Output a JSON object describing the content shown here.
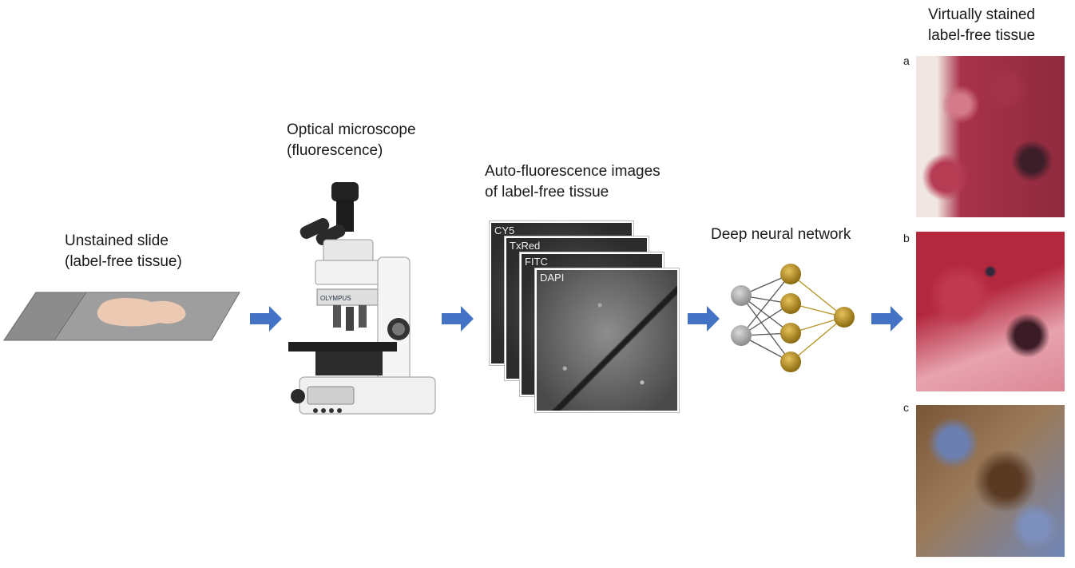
{
  "labels": {
    "unstained_line1": "Unstained slide",
    "unstained_line2": "(label-free tissue)",
    "microscope_line1": "Optical microscope",
    "microscope_line2": "(fluorescence)",
    "autofluor_line1": "Auto-fluorescence images",
    "autofluor_line2": "of label-free tissue",
    "dnn": "Deep neural network",
    "virtual_line1": "Virtually stained",
    "virtual_line2": "label-free tissue"
  },
  "channels": [
    "CY5",
    "TxRed",
    "FITC",
    "DAPI"
  ],
  "panels": [
    "a",
    "b",
    "c"
  ],
  "microscope_brand": "OLYMPUS",
  "colors": {
    "arrow": "#4472c4",
    "node_gray": "#a6a6a6",
    "node_gold": "#c9a227",
    "stain_ab": "#c0394f",
    "stain_c": "#6b7fb0"
  },
  "network_layers": [
    2,
    4,
    1
  ]
}
